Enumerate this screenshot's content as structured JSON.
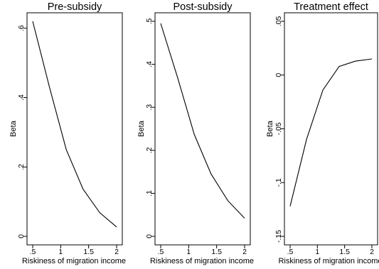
{
  "chart_data": [
    {
      "type": "line",
      "title": "Pre-subsidy",
      "xlabel": "Riskiness of migration income",
      "ylabel": "Beta",
      "xlim": [
        0.5,
        2
      ],
      "ylim": [
        0,
        0.62
      ],
      "xticks": [
        ".5",
        "1",
        "1.5",
        "2"
      ],
      "xtick_values": [
        0.5,
        1,
        1.5,
        2
      ],
      "yticks": [
        "0",
        ".2",
        ".4",
        ".6"
      ],
      "ytick_values": [
        0,
        0.2,
        0.4,
        0.6
      ],
      "series": [
        {
          "x": [
            0.5,
            0.8,
            1.1,
            1.4,
            1.7,
            2.0
          ],
          "y": [
            0.62,
            0.43,
            0.25,
            0.136,
            0.068,
            0.027
          ]
        }
      ]
    },
    {
      "type": "line",
      "title": "Post-subsidy",
      "xlabel": "Riskiness of migration income",
      "ylabel": "Beta",
      "xlim": [
        0.5,
        2
      ],
      "ylim": [
        0,
        0.5
      ],
      "xticks": [
        ".5",
        "1",
        "1.5",
        "2"
      ],
      "xtick_values": [
        0.5,
        1,
        1.5,
        2
      ],
      "yticks": [
        "0",
        ".1",
        ".2",
        ".3",
        ".4",
        ".5"
      ],
      "ytick_values": [
        0,
        0.1,
        0.2,
        0.3,
        0.4,
        0.5
      ],
      "series": [
        {
          "x": [
            0.5,
            0.8,
            1.1,
            1.4,
            1.7,
            2.0
          ],
          "y": [
            0.495,
            0.37,
            0.237,
            0.145,
            0.083,
            0.042
          ]
        }
      ]
    },
    {
      "type": "line",
      "title": "Treatment effect",
      "xlabel": "Riskiness of migration income",
      "ylabel": "Beta",
      "xlim": [
        0.5,
        2
      ],
      "ylim": [
        -0.15,
        0.05
      ],
      "xticks": [
        ".5",
        "1",
        "1.5",
        "2"
      ],
      "xtick_values": [
        0.5,
        1,
        1.5,
        2
      ],
      "yticks": [
        "-.15",
        "-.1",
        "-.05",
        "0",
        ".05"
      ],
      "ytick_values": [
        -0.15,
        -0.1,
        -0.05,
        0,
        0.05
      ],
      "series": [
        {
          "x": [
            0.5,
            0.8,
            1.1,
            1.4,
            1.7,
            2.0
          ],
          "y": [
            -0.122,
            -0.06,
            -0.014,
            0.008,
            0.013,
            0.015
          ]
        }
      ]
    }
  ]
}
